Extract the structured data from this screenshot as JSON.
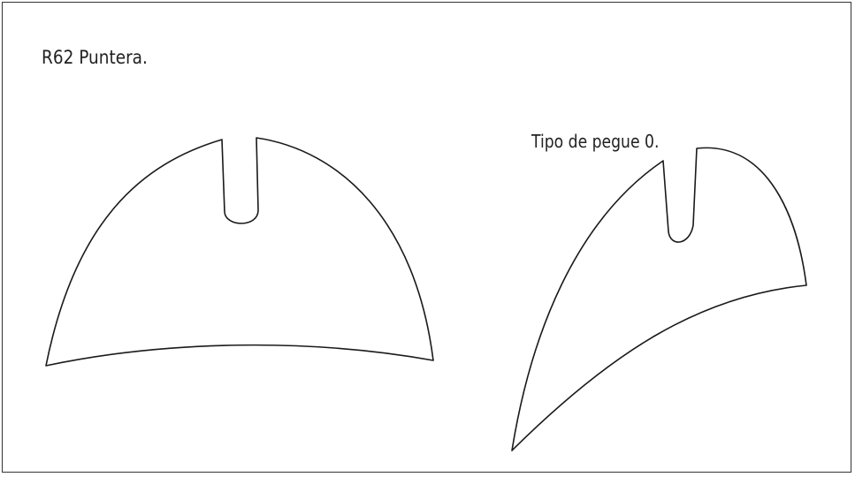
{
  "labels": {
    "title": "R62 Puntera.",
    "subtitle": "Tipo de pegue 0."
  },
  "colors": {
    "stroke": "#1a1a1a",
    "text": "#222222",
    "border": "#333333"
  }
}
